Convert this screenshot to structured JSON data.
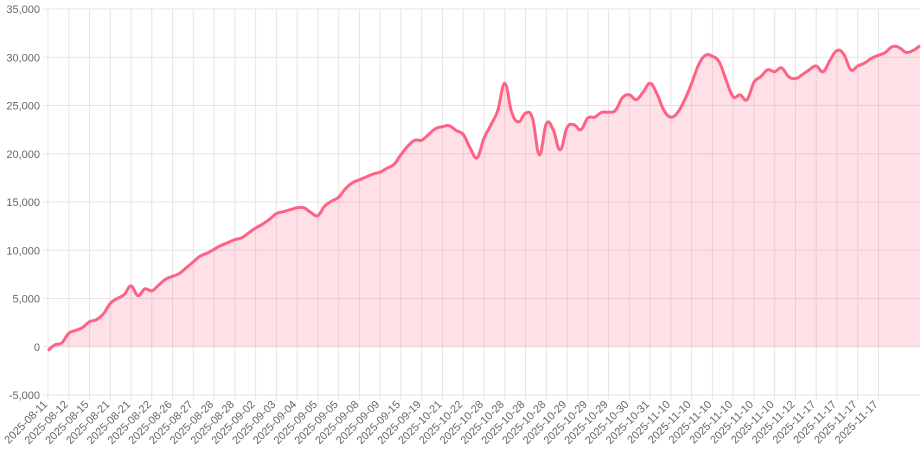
{
  "chart_data": {
    "type": "line",
    "fill": true,
    "grid": true,
    "color": "#ff6384",
    "fill_color": "rgba(255, 99, 132, 0.2)",
    "ylim": [
      -5000,
      35000
    ],
    "yticks": [
      {
        "value": -5000,
        "label": "-5,000"
      },
      0,
      {
        "value": 5000,
        "label": "5,000"
      },
      {
        "value": 10000,
        "label": "10,000"
      },
      {
        "value": 15000,
        "label": "15,000"
      },
      {
        "value": 20000,
        "label": "20,000"
      },
      {
        "value": 25000,
        "label": "25,000"
      },
      {
        "value": 30000,
        "label": "30,000"
      },
      {
        "value": 35000,
        "label": "35,000"
      }
    ],
    "categories": [
      "2025-08-11",
      null,
      null,
      "2025-08-12",
      null,
      null,
      "2025-08-15",
      null,
      null,
      "2025-08-21",
      null,
      null,
      "2025-08-21",
      null,
      null,
      "2025-08-22",
      null,
      null,
      "2025-08-26",
      null,
      null,
      "2025-08-27",
      null,
      null,
      "2025-08-28",
      null,
      null,
      "2025-08-28",
      null,
      null,
      "2025-09-02",
      null,
      null,
      "2025-09-03",
      null,
      null,
      "2025-09-04",
      null,
      null,
      "2025-09-05",
      null,
      null,
      "2025-09-05",
      null,
      null,
      "2025-09-08",
      null,
      null,
      "2025-09-09",
      null,
      null,
      "2025-09-15",
      null,
      null,
      "2025-09-19",
      null,
      null,
      "2025-10-21",
      null,
      null,
      "2025-10-22",
      null,
      null,
      "2025-10-28",
      null,
      null,
      "2025-10-28",
      null,
      null,
      "2025-10-28",
      null,
      null,
      "2025-10-28",
      null,
      null,
      "2025-10-29",
      null,
      null,
      "2025-10-29",
      null,
      null,
      "2025-10-29",
      null,
      null,
      "2025-10-30",
      null,
      null,
      "2025-10-31",
      null,
      null,
      "2025-11-10",
      null,
      null,
      "2025-11-10",
      null,
      null,
      "2025-11-10",
      null,
      null,
      "2025-11-10",
      null,
      null,
      "2025-11-10",
      null,
      null,
      "2025-11-10",
      null,
      null,
      "2025-11-12",
      null,
      null,
      "2025-11-17",
      null,
      null,
      "2025-11-17",
      null,
      null,
      "2025-11-17",
      null,
      null,
      "2025-11-17",
      null,
      null,
      null,
      null,
      null,
      null
    ],
    "values": [
      -400,
      200,
      400,
      1400,
      1700,
      2000,
      2600,
      2800,
      3400,
      4500,
      5000,
      5400,
      6300,
      5300,
      6000,
      5800,
      6400,
      7000,
      7300,
      7600,
      8200,
      8800,
      9400,
      9700,
      10100,
      10500,
      10800,
      11100,
      11300,
      11800,
      12300,
      12700,
      13200,
      13800,
      14000,
      14200,
      14400,
      14400,
      13900,
      13600,
      14600,
      15100,
      15500,
      16400,
      17000,
      17300,
      17600,
      17900,
      18100,
      18500,
      18900,
      19900,
      20800,
      21400,
      21400,
      22000,
      22600,
      22800,
      22900,
      22400,
      22000,
      20600,
      19600,
      21600,
      23000,
      24500,
      27300,
      24300,
      23300,
      24200,
      23700,
      19900,
      23100,
      22500,
      20400,
      22700,
      23000,
      22500,
      23700,
      23800,
      24300,
      24300,
      24500,
      25800,
      26100,
      25600,
      26400,
      27300,
      26200,
      24500,
      23800,
      24300,
      25600,
      27300,
      29200,
      30200,
      30100,
      29500,
      27600,
      25900,
      26100,
      25600,
      27400,
      28000,
      28700,
      28500,
      28900,
      28000,
      27800,
      28200,
      28700,
      29100,
      28500,
      29700,
      30700,
      30300,
      28700,
      29100,
      29400,
      29900,
      30200,
      30500,
      31100,
      31000,
      30500,
      30700,
      31200
    ]
  }
}
